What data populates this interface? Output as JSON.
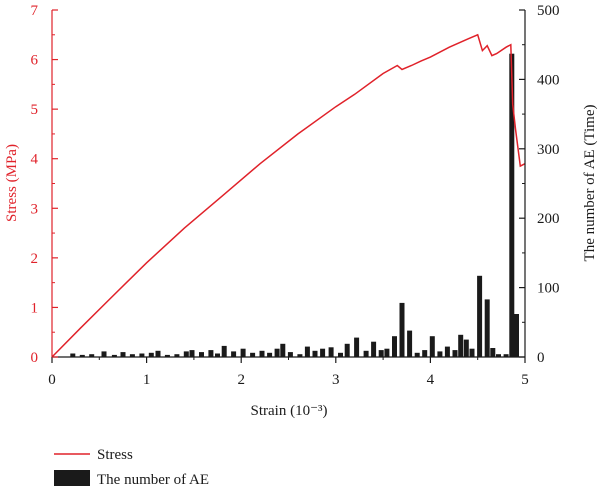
{
  "chart_data": {
    "type": "bar+line",
    "x_label": "Strain (10⁻³)",
    "y_left_label": "Stress (MPa)",
    "y_right_label": "The number of AE (Time)",
    "xlim": [
      0,
      5
    ],
    "ylim_left": [
      0,
      7
    ],
    "ylim_right": [
      0,
      500
    ],
    "x_ticks": [
      "0",
      "1",
      "2",
      "3",
      "4",
      "5"
    ],
    "y_left_ticks": [
      "0",
      "1",
      "2",
      "3",
      "4",
      "5",
      "6",
      "7"
    ],
    "y_right_ticks": [
      "0",
      "100",
      "200",
      "300",
      "400",
      "500"
    ],
    "legend": [
      "Stress",
      "The number of AE"
    ],
    "colors": {
      "stress": "#e0222a",
      "ae": "#1a1a1a",
      "axis": "#1a1a1a"
    },
    "stress_series": {
      "name": "Stress",
      "x": [
        0,
        0.3,
        0.6,
        1.0,
        1.4,
        1.8,
        2.2,
        2.6,
        3.0,
        3.2,
        3.5,
        3.65,
        3.7,
        3.8,
        3.9,
        4.0,
        4.2,
        4.4,
        4.5,
        4.55,
        4.6,
        4.65,
        4.7,
        4.8,
        4.85,
        4.87,
        4.9,
        4.95,
        5.0
      ],
      "y": [
        0,
        0.58,
        1.15,
        1.9,
        2.6,
        3.25,
        3.9,
        4.5,
        5.05,
        5.3,
        5.72,
        5.88,
        5.8,
        5.88,
        5.97,
        6.05,
        6.25,
        6.42,
        6.5,
        6.18,
        6.28,
        6.08,
        6.12,
        6.25,
        6.3,
        5.1,
        4.6,
        3.85,
        3.9
      ]
    },
    "ae_series": {
      "name": "The number of AE",
      "x": [
        0.22,
        0.32,
        0.42,
        0.55,
        0.66,
        0.75,
        0.85,
        0.95,
        1.05,
        1.12,
        1.22,
        1.32,
        1.42,
        1.48,
        1.58,
        1.68,
        1.75,
        1.82,
        1.92,
        2.02,
        2.12,
        2.22,
        2.3,
        2.38,
        2.44,
        2.52,
        2.62,
        2.7,
        2.78,
        2.86,
        2.95,
        3.05,
        3.12,
        3.22,
        3.32,
        3.4,
        3.48,
        3.54,
        3.62,
        3.7,
        3.78,
        3.86,
        3.94,
        4.02,
        4.1,
        4.18,
        4.26,
        4.32,
        4.38,
        4.44,
        4.52,
        4.6,
        4.66,
        4.72,
        4.8,
        4.86,
        4.91
      ],
      "y": [
        5,
        3,
        4,
        8,
        3,
        7,
        4,
        5,
        6,
        9,
        3,
        4,
        8,
        10,
        7,
        10,
        5,
        16,
        8,
        12,
        6,
        9,
        6,
        12,
        19,
        7,
        4,
        15,
        9,
        12,
        14,
        6,
        19,
        28,
        9,
        22,
        10,
        12,
        30,
        78,
        38,
        6,
        10,
        30,
        8,
        15,
        10,
        32,
        25,
        12,
        117,
        83,
        13,
        4,
        4,
        437,
        62
      ]
    }
  }
}
